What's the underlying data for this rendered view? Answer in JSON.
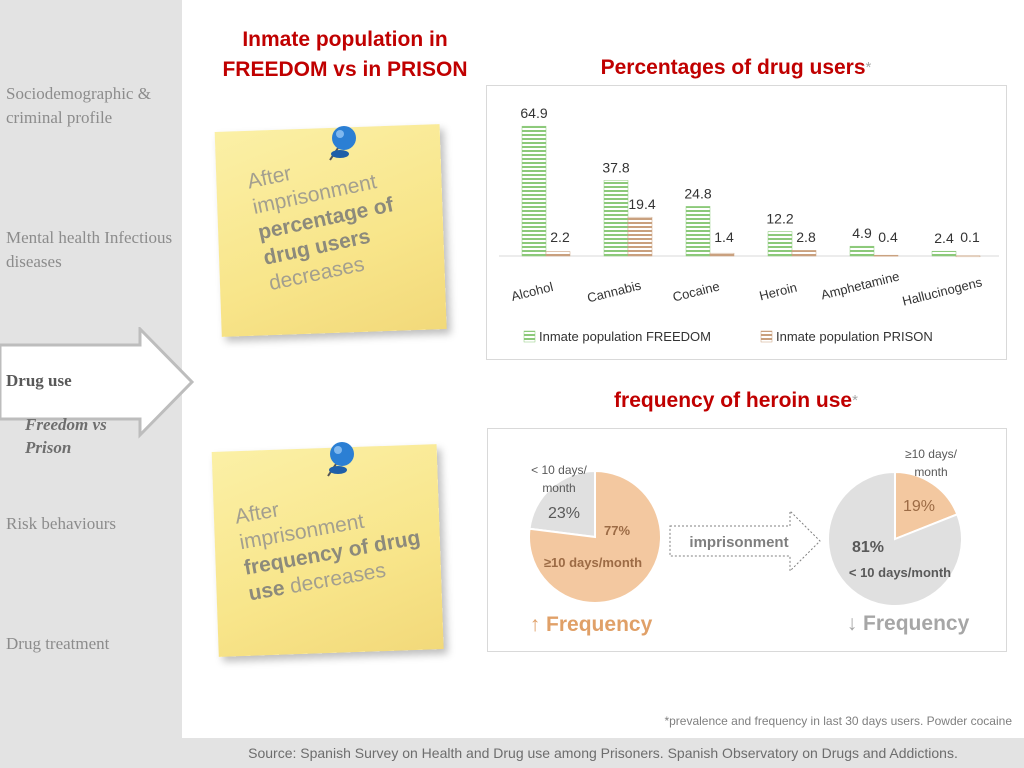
{
  "sidebar": {
    "items": [
      {
        "label": "Sociodemographic & criminal profile"
      },
      {
        "label": "Mental health Infectious diseases"
      },
      {
        "label": "Drug use",
        "sublabel": "Freedom vs Prison"
      },
      {
        "label": "Risk behaviours"
      },
      {
        "label": "Drug treatment"
      }
    ]
  },
  "header": {
    "title_line1": "Inmate population in",
    "title_line2": "FREEDOM vs in PRISON"
  },
  "notes": {
    "note1": {
      "line1": "After",
      "line2": "imprisonment",
      "line3": "percentage of",
      "line4": "drug users",
      "line5": "decreases"
    },
    "note2": {
      "line1": "After",
      "line2": "imprisonment",
      "line3": "frequency of  drug",
      "line4": "use",
      "line5": "decreases"
    }
  },
  "bar_chart": {
    "heading": "Percentages of drug users",
    "asterisk": "*"
  },
  "pie_section": {
    "heading": "frequency of heroin use",
    "asterisk": "*",
    "left": {
      "small_label_1": "< 10 days/",
      "small_label_2": "month",
      "small_value": "23%",
      "large_value": "77%",
      "large_label": "≥10 days/month",
      "trend": "↑ Frequency"
    },
    "arrow_label": "imprisonment",
    "right": {
      "small_label_1": "≥10 days/",
      "small_label_2": "month",
      "small_value": "19%",
      "large_value": "81%",
      "large_label": "< 10 days/month",
      "trend": "↓ Frequency"
    }
  },
  "footnote": "*prevalence and frequency in last 30 days users. Powder cocaine",
  "source": "Source: Spanish Survey on Health  and Drug use among Prisoners. Spanish Observatory on Drugs and Addictions.",
  "colors": {
    "heading": "#c00000",
    "freedom": "#8cc97a",
    "prison": "#c9a07e",
    "pie_warm": "#f3c8a0",
    "pie_grey": "#e0e0e0"
  },
  "chart_data": [
    {
      "type": "bar",
      "title": "Percentages of drug users",
      "categories": [
        "Alcohol",
        "Cannabis",
        "Cocaine",
        "Heroin",
        "Amphetamine",
        "Hallucinogens"
      ],
      "series": [
        {
          "name": "Inmate population FREEDOM",
          "values": [
            64.9,
            37.8,
            24.8,
            12.2,
            4.9,
            2.4
          ],
          "labels": [
            "64.9",
            "37.8",
            "24.8",
            "12.2",
            "4.9",
            "2.4"
          ]
        },
        {
          "name": "Inmate population PRISON",
          "values": [
            2.2,
            19.4,
            1.4,
            2.8,
            0.4,
            0.1
          ],
          "labels": [
            "2.2",
            "19.4",
            "1.4",
            "2.8",
            "0.4",
            "0.1"
          ]
        }
      ],
      "ylim": [
        0,
        70
      ],
      "grid": false,
      "legend": "bottom"
    },
    {
      "type": "pie",
      "title": "frequency of heroin use",
      "labels": [
        "< 10 days/month",
        "≥10 days/month"
      ],
      "values": [
        23,
        77
      ]
    },
    {
      "type": "pie",
      "title": "frequency of heroin use",
      "labels": [
        "≥10 days/month",
        "< 10 days/month"
      ],
      "values": [
        19,
        81
      ]
    }
  ]
}
